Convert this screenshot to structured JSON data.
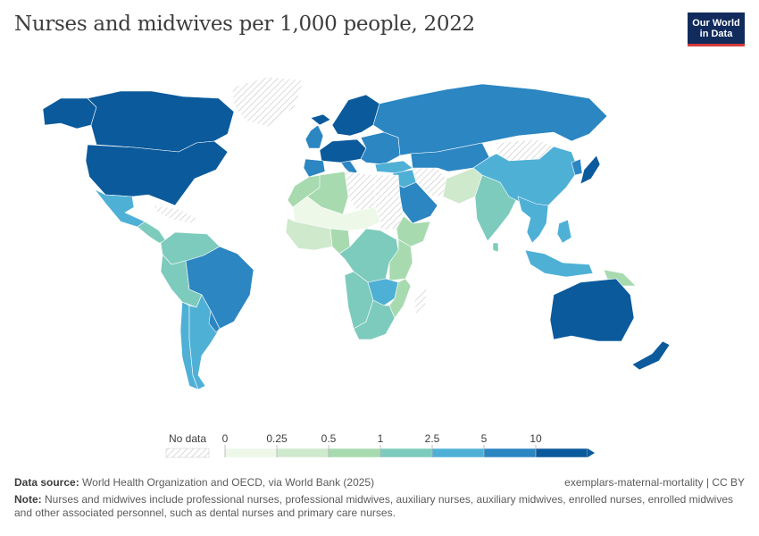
{
  "title": "Nurses and midwives per 1,000 people, 2022",
  "logo": {
    "line1": "Our World",
    "line2": "in Data"
  },
  "legend": {
    "no_data_label": "No data",
    "ticks": [
      "0",
      "0.25",
      "0.5",
      "1",
      "2.5",
      "5",
      "10"
    ],
    "colors": [
      "#edf8e9",
      "#cfe9cd",
      "#a8dab0",
      "#7dcbbd",
      "#4fb0d6",
      "#2b86c2",
      "#0b5a9c"
    ]
  },
  "footer": {
    "source_label": "Data source:",
    "source_text": "World Health Organization and OECD, via World Bank (2025)",
    "url_license": "exemplars-maternal-mortality | CC BY",
    "note_label": "Note:",
    "note_text": "Nurses and midwives include professional nurses, professional midwives, auxiliary nurses, auxiliary midwives, enrolled nurses, enrolled midwives and other associated personnel, such as dental nurses and primary care nurses."
  },
  "colors": {
    "border": "#ffffff",
    "no_data": "#e9e9e9",
    "hatch": "#cccccc"
  },
  "regions": [
    {
      "id": "canada",
      "name": "Canada",
      "bin": 6
    },
    {
      "id": "alaska",
      "name": "United States (Alaska)",
      "bin": 6
    },
    {
      "id": "greenland",
      "name": "Greenland",
      "bin": -1
    },
    {
      "id": "usa",
      "name": "United States",
      "bin": 6
    },
    {
      "id": "mexico",
      "name": "Mexico",
      "bin": 4
    },
    {
      "id": "central-america",
      "name": "Central America",
      "bin": 3
    },
    {
      "id": "caribbean",
      "name": "Caribbean",
      "bin": -1
    },
    {
      "id": "colombia-venezuela",
      "name": "Colombia and Venezuela",
      "bin": 3
    },
    {
      "id": "brazil",
      "name": "Brazil",
      "bin": 5
    },
    {
      "id": "peru-bolivia",
      "name": "Peru and Bolivia",
      "bin": 3
    },
    {
      "id": "chile",
      "name": "Chile",
      "bin": 4
    },
    {
      "id": "argentina",
      "name": "Argentina",
      "bin": 4
    },
    {
      "id": "uruguay",
      "name": "Uruguay",
      "bin": 5
    },
    {
      "id": "iceland",
      "name": "Iceland",
      "bin": 6
    },
    {
      "id": "scandinavia",
      "name": "Norway, Sweden, Finland",
      "bin": 6
    },
    {
      "id": "uk-ireland",
      "name": "United Kingdom and Ireland",
      "bin": 5
    },
    {
      "id": "western-europe",
      "name": "Western Europe",
      "bin": 6
    },
    {
      "id": "iberia",
      "name": "Spain and Portugal",
      "bin": 5
    },
    {
      "id": "italy",
      "name": "Italy",
      "bin": 5
    },
    {
      "id": "eastern-europe",
      "name": "Eastern Europe",
      "bin": 5
    },
    {
      "id": "russia",
      "name": "Russia",
      "bin": 5
    },
    {
      "id": "turkey",
      "name": "Turkey",
      "bin": 4
    },
    {
      "id": "middle-east",
      "name": "Middle East",
      "bin": 4
    },
    {
      "id": "arabian-peninsula",
      "name": "Arabian Peninsula",
      "bin": 5
    },
    {
      "id": "iran",
      "name": "Iran",
      "bin": -1
    },
    {
      "id": "central-asia",
      "name": "Central Asia",
      "bin": 5
    },
    {
      "id": "afghanistan-pakistan",
      "name": "Afghanistan and Pakistan",
      "bin": 1
    },
    {
      "id": "india",
      "name": "India",
      "bin": 3
    },
    {
      "id": "sri-lanka",
      "name": "Sri Lanka",
      "bin": 3
    },
    {
      "id": "mongolia",
      "name": "Mongolia",
      "bin": -1
    },
    {
      "id": "china",
      "name": "China",
      "bin": 4
    },
    {
      "id": "korea",
      "name": "Korea",
      "bin": 5
    },
    {
      "id": "japan",
      "name": "Japan",
      "bin": 6
    },
    {
      "id": "southeast-asia",
      "name": "Southeast Asia",
      "bin": 4
    },
    {
      "id": "philippines",
      "name": "Philippines",
      "bin": 4
    },
    {
      "id": "indonesia",
      "name": "Indonesia",
      "bin": 4
    },
    {
      "id": "papua-new-guinea",
      "name": "Papua New Guinea",
      "bin": 2
    },
    {
      "id": "australia",
      "name": "Australia",
      "bin": 6
    },
    {
      "id": "new-zealand",
      "name": "New Zealand",
      "bin": 6
    },
    {
      "id": "morocco-west-sahara",
      "name": "Morocco",
      "bin": 2
    },
    {
      "id": "algeria",
      "name": "Algeria",
      "bin": 2
    },
    {
      "id": "libya",
      "name": "Libya",
      "bin": -1
    },
    {
      "id": "egypt",
      "name": "Egypt",
      "bin": -1
    },
    {
      "id": "sahel",
      "name": "Mali, Niger, Chad",
      "bin": 0
    },
    {
      "id": "sudan",
      "name": "Sudan",
      "bin": -1
    },
    {
      "id": "west-africa",
      "name": "West Africa",
      "bin": 1
    },
    {
      "id": "nigeria",
      "name": "Nigeria",
      "bin": 2
    },
    {
      "id": "horn-of-africa",
      "name": "Ethiopia and Horn of Africa",
      "bin": 2
    },
    {
      "id": "central-africa",
      "name": "Central Africa",
      "bin": 3
    },
    {
      "id": "east-africa",
      "name": "East Africa",
      "bin": 2
    },
    {
      "id": "southern-africa-west",
      "name": "Angola and Namibia",
      "bin": 3
    },
    {
      "id": "zambia-botswana",
      "name": "Zambia and Botswana",
      "bin": 4
    },
    {
      "id": "mozambique",
      "name": "Mozambique",
      "bin": 2
    },
    {
      "id": "south-africa",
      "name": "South Africa",
      "bin": 3
    },
    {
      "id": "madagascar",
      "name": "Madagascar",
      "bin": -1
    }
  ]
}
